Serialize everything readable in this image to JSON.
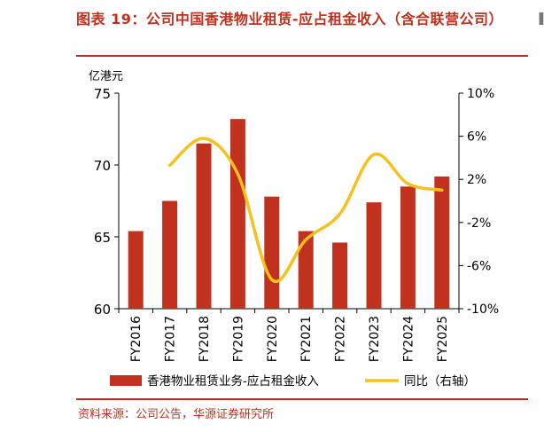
{
  "figure": {
    "title": "图表 19：公司中国香港物业租赁-应占租金收入（含合联营公司）",
    "source": "资料来源：公司公告，华源证券研究所"
  },
  "chart_data": {
    "type": "bar",
    "categories": [
      "FY2016",
      "FY2017",
      "FY2018",
      "FY2019",
      "FY2020",
      "FY2021",
      "FY2022",
      "FY2023",
      "FY2024",
      "FY2025"
    ],
    "unit_label": "亿港元",
    "series": [
      {
        "name": "香港物业租赁业务-应占租金收入",
        "type": "bar",
        "axis": "left",
        "color": "#c0311e",
        "values": [
          65.4,
          67.5,
          71.5,
          73.2,
          67.8,
          65.4,
          64.6,
          67.4,
          68.5,
          69.2
        ]
      },
      {
        "name": "同比（右轴）",
        "type": "line",
        "axis": "right",
        "color": "#f5c11c",
        "values": [
          null,
          3.3,
          5.8,
          2.5,
          -7.3,
          -3.6,
          -1.2,
          4.3,
          1.6,
          1.0
        ]
      }
    ],
    "y_left": {
      "min": 60,
      "max": 75,
      "ticks": [
        "60",
        "65",
        "70",
        "75"
      ]
    },
    "y_right": {
      "min": -10,
      "max": 10,
      "ticks": [
        "-10%",
        "-6%",
        "-2%",
        "2%",
        "6%",
        "10%"
      ]
    },
    "legend": {
      "position": "bottom",
      "bar_label": "香港物业租赁业务-应占租金收入",
      "line_label": "同比（右轴）"
    },
    "grid": false
  }
}
